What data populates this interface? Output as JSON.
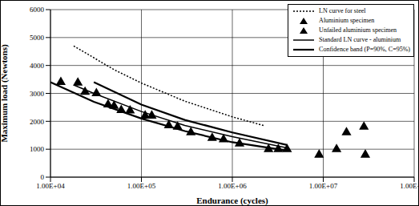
{
  "chart_data": {
    "type": "scatter",
    "x_label": "Endurance (cycles)",
    "y_label": "Maximum load (Newtons)",
    "log": "x",
    "grid": true,
    "legend": "upper right",
    "xlim": [
      10000,
      100000000
    ],
    "xticks": [
      {
        "value": 10000,
        "label": "1.00E+04"
      },
      {
        "value": 100000,
        "label": "1.00E+05"
      },
      {
        "value": 1000000,
        "label": "1.00E+06"
      },
      {
        "value": 10000000,
        "label": "1.00E+07"
      },
      {
        "value": 100000000,
        "label": "1.00E+08"
      }
    ],
    "ylim": [
      0,
      6000
    ],
    "yticks": [
      0,
      1000,
      2000,
      3000,
      4000,
      5000,
      6000
    ],
    "series": [
      {
        "name": "LN curve for steel",
        "type": "line",
        "line_style": "dotted",
        "color": "#000000",
        "x": [
          18000,
          50000,
          100000,
          300000,
          1000000,
          2200000
        ],
        "values": [
          4700,
          3850,
          3370,
          2720,
          2160,
          1850
        ]
      },
      {
        "name": "Aluminium specimen",
        "type": "scatter",
        "marker": "triangle",
        "color": "#000000",
        "x": [
          13000,
          20000,
          24000,
          32000,
          43000,
          50000,
          60000,
          75000,
          110000,
          130000,
          200000,
          250000,
          350000,
          600000,
          800000,
          1200000,
          2500000,
          3200000,
          4000000
        ],
        "values": [
          3400,
          3380,
          3050,
          3000,
          2600,
          2550,
          2400,
          2380,
          2200,
          2200,
          1850,
          1800,
          1600,
          1400,
          1350,
          1200,
          1000,
          1000,
          1000
        ]
      },
      {
        "name": "Unfailed aluminium specimen",
        "type": "scatter",
        "marker": "triangle",
        "color": "#000000",
        "x": [
          9000000,
          14000000,
          18000000,
          28000000,
          29000000
        ],
        "values": [
          800,
          1000,
          1600,
          1800,
          800
        ]
      },
      {
        "name": "Standard LN curve - aluminium",
        "type": "line",
        "line_style": "solid",
        "color": "#000000",
        "x": [
          18000,
          30000,
          100000,
          300000,
          1000000,
          4000000
        ],
        "values": [
          3300,
          3000,
          2350,
          1850,
          1450,
          1050
        ]
      },
      {
        "name": "Confidence band (P=90%, C=95%)",
        "type": "band",
        "line_style": "solid",
        "color": "#000000",
        "x": [
          10000,
          30000,
          100000,
          300000,
          1000000,
          4000000
        ],
        "lower": [
          3400,
          2700,
          2100,
          1650,
          1250,
          950
        ],
        "upper": [
          null,
          3400,
          2600,
          2050,
          1600,
          1150
        ]
      }
    ]
  }
}
